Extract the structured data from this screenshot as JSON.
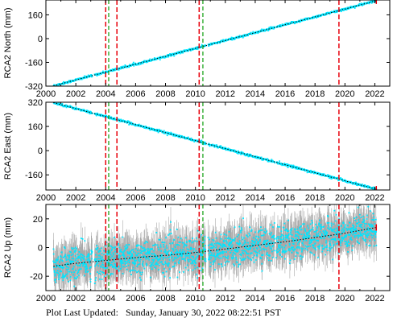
{
  "footer": {
    "label": "Plot Last Updated:",
    "timestamp": "Sunday, January 30, 2022 08:22:51 PST"
  },
  "colors": {
    "data": "#00e5ff",
    "error_bar": "#a9a9a9",
    "trend": "#000000",
    "red_line": "#e8000b",
    "green_line": "#1fa61f",
    "frame": "#000000"
  },
  "chart_data": [
    {
      "type": "scatter",
      "name": "north",
      "ylabel": "RCA2 North (mm)",
      "xlabel": "",
      "xlim": [
        2000,
        2023
      ],
      "ylim": [
        -320,
        260
      ],
      "yticks": [
        -320,
        -160,
        0,
        160
      ],
      "xticks": [
        2000,
        2002,
        2004,
        2006,
        2008,
        2010,
        2012,
        2014,
        2016,
        2018,
        2020,
        2022
      ],
      "grid": false,
      "trend_start": [
        2000.5,
        -318
      ],
      "trend_end": [
        2022.1,
        255
      ],
      "scatter_mm": 4,
      "error_mm": 3,
      "red_vlines": [
        2004.0,
        2004.75,
        2010.25,
        2019.6
      ],
      "green_vlines": [
        2004.2,
        2010.5
      ]
    },
    {
      "type": "scatter",
      "name": "east",
      "ylabel": "RCA2 East (mm)",
      "xlabel": "",
      "xlim": [
        2000,
        2023
      ],
      "ylim": [
        -260,
        320
      ],
      "yticks": [
        -160,
        0,
        160,
        320
      ],
      "xticks": [
        2000,
        2002,
        2004,
        2006,
        2008,
        2010,
        2012,
        2014,
        2016,
        2018,
        2020,
        2022
      ],
      "grid": false,
      "trend_start": [
        2000.5,
        318
      ],
      "trend_end": [
        2022.1,
        -255
      ],
      "scatter_mm": 4,
      "error_mm": 3,
      "red_vlines": [
        2004.0,
        2004.75,
        2010.25,
        2019.6
      ],
      "green_vlines": [
        2004.2,
        2010.5
      ]
    },
    {
      "type": "scatter",
      "name": "up",
      "ylabel": "RCA2 Up (mm)",
      "xlabel": "",
      "xlim": [
        2000,
        2023
      ],
      "ylim": [
        -30,
        30
      ],
      "yticks": [
        -20,
        0,
        20
      ],
      "xticks": [
        2000,
        2002,
        2004,
        2006,
        2008,
        2010,
        2012,
        2014,
        2016,
        2018,
        2020,
        2022
      ],
      "grid": false,
      "trend_start": [
        2000.5,
        -13
      ],
      "trend_end": [
        2022.1,
        14
      ],
      "trend_points": [
        [
          2000.5,
          -13
        ],
        [
          2002,
          -11
        ],
        [
          2004,
          -9
        ],
        [
          2006,
          -7
        ],
        [
          2008,
          -5.5
        ],
        [
          2010,
          -3.5
        ],
        [
          2012,
          -1
        ],
        [
          2014,
          1.5
        ],
        [
          2016,
          4
        ],
        [
          2018,
          7
        ],
        [
          2020,
          10
        ],
        [
          2022.1,
          14
        ]
      ],
      "scatter_mm": 6,
      "error_mm": 8,
      "red_vlines": [
        2004.0,
        2004.75,
        2010.25,
        2019.6
      ],
      "green_vlines": [
        2004.2,
        2010.5
      ]
    }
  ]
}
